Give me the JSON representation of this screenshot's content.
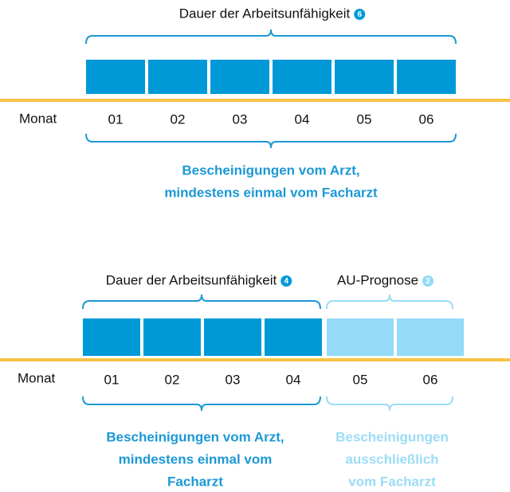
{
  "diagrams": [
    {
      "title": "Dauer der Arbeitsunfähigkeit",
      "badge": "6",
      "axis_label": "Monat",
      "months": [
        "01",
        "02",
        "03",
        "04",
        "05",
        "06"
      ],
      "caption": [
        "Bescheinigungen vom Arzt,",
        "mindestens einmal vom Facharzt"
      ]
    },
    {
      "title": "Dauer der Arbeitsunfähigkeit",
      "badge": "4",
      "prognosis_title": "AU-Prognose",
      "prognosis_badge": "2",
      "axis_label": "Monat",
      "months": [
        "01",
        "02",
        "03",
        "04",
        "05",
        "06"
      ],
      "caption": [
        "Bescheinigungen vom Arzt,",
        "mindestens einmal vom",
        "Facharzt"
      ],
      "prognosis_caption": [
        "Bescheinigungen",
        "ausschließlich",
        "vom Facharzt"
      ]
    }
  ]
}
